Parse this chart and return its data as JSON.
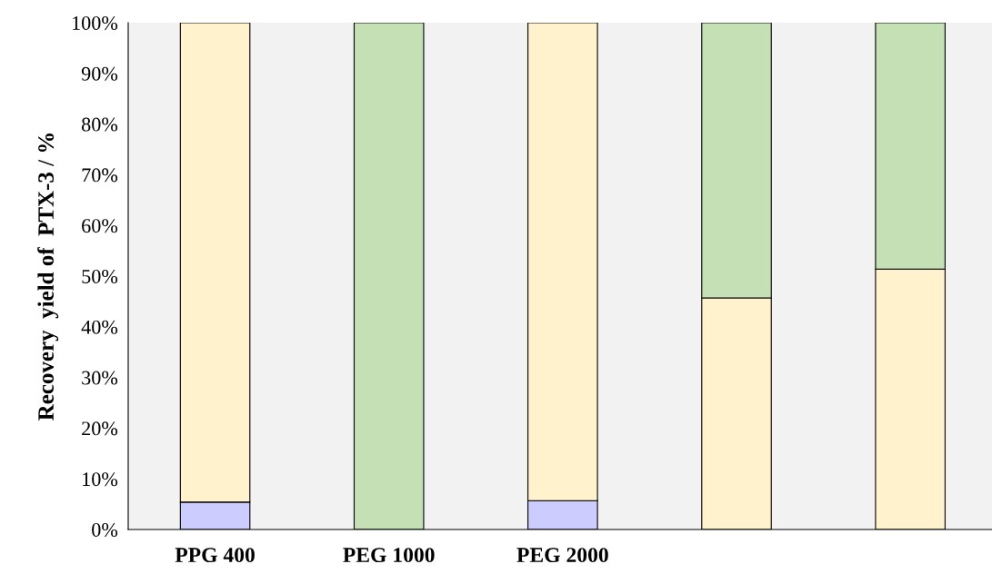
{
  "chart_data": {
    "type": "bar",
    "stacked": true,
    "ylabel": "Recovery  yield of  PTX-3 / %",
    "categories": [
      "PPG 400",
      "PEG 1000",
      "PEG 2000",
      null,
      null
    ],
    "series": [
      {
        "color": "#ccccff",
        "values": [
          5.4,
          0,
          5.7,
          0,
          0
        ]
      },
      {
        "color": "#fff2cc",
        "values": [
          94.6,
          0,
          94.3,
          45.7,
          51.4
        ]
      },
      {
        "color": "#c5e0b4",
        "values": [
          0,
          100,
          0,
          54.3,
          48.6
        ]
      }
    ],
    "ylim": [
      0,
      100
    ],
    "yticks": [
      {
        "value": 0,
        "label": "0%"
      },
      {
        "value": 10,
        "label": "10%"
      },
      {
        "value": 20,
        "label": "20%"
      },
      {
        "value": 30,
        "label": "30%"
      },
      {
        "value": 40,
        "label": "40%"
      },
      {
        "value": 50,
        "label": "50%"
      },
      {
        "value": 60,
        "label": "60%"
      },
      {
        "value": 70,
        "label": "70%"
      },
      {
        "value": 80,
        "label": "80%"
      },
      {
        "value": 90,
        "label": "90%"
      },
      {
        "value": 100,
        "label": "100%"
      }
    ],
    "grid": false
  }
}
